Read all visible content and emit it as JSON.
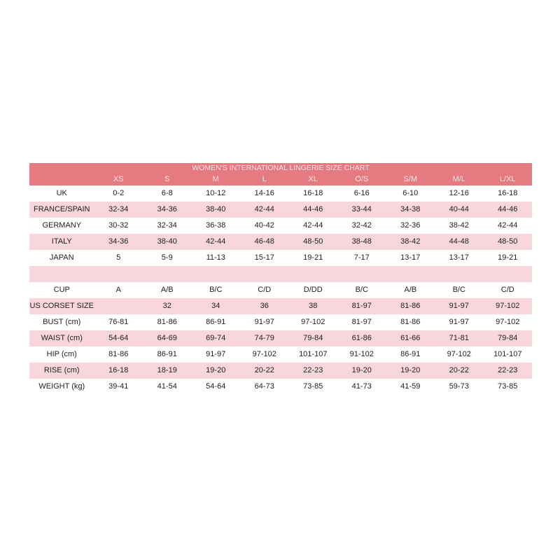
{
  "title": "WOMEN'S INTERNATIONAL LINGERIE SIZE CHART",
  "colors": {
    "header": "#e57b80",
    "stripe": "#f8d6dc"
  },
  "sizes": [
    "XS",
    "S",
    "M",
    "L",
    "XL",
    "O/S",
    "S/M",
    "M/L",
    "L/XL"
  ],
  "rows": [
    {
      "label": "UK",
      "values": [
        "0-2",
        "6-8",
        "10-12",
        "14-16",
        "16-18",
        "6-16",
        "6-10",
        "12-16",
        "16-18"
      ]
    },
    {
      "label": "FRANCE/SPAIN",
      "values": [
        "32-34",
        "34-36",
        "38-40",
        "42-44",
        "44-46",
        "33-44",
        "34-38",
        "40-44",
        "44-46"
      ]
    },
    {
      "label": "GERMANY",
      "values": [
        "30-32",
        "32-34",
        "36-38",
        "40-42",
        "42-44",
        "32-42",
        "32-36",
        "38-42",
        "42-44"
      ]
    },
    {
      "label": "ITALY",
      "values": [
        "34-36",
        "38-40",
        "42-44",
        "46-48",
        "48-50",
        "38-48",
        "38-42",
        "44-48",
        "48-50"
      ]
    },
    {
      "label": "JAPAN",
      "values": [
        "5",
        "5-9",
        "11-13",
        "15-17",
        "19-21",
        "7-17",
        "13-17",
        "13-17",
        "19-21"
      ]
    },
    {
      "label": "",
      "values": [
        "",
        "",
        "",
        "",
        "",
        "",
        "",
        "",
        ""
      ]
    },
    {
      "label": "CUP",
      "values": [
        "A",
        "A/B",
        "B/C",
        "C/D",
        "D/DD",
        "B/C",
        "A/B",
        "B/C",
        "C/D"
      ]
    },
    {
      "label": "US CORSET SIZE",
      "values": [
        "",
        "32",
        "34",
        "36",
        "38",
        "81-97",
        "81-86",
        "91-97",
        "97-102"
      ]
    },
    {
      "label": "BUST (cm)",
      "values": [
        "76-81",
        "81-86",
        "86-91",
        "91-97",
        "97-102",
        "81-97",
        "81-86",
        "91-97",
        "97-102"
      ]
    },
    {
      "label": "WAIST (cm)",
      "values": [
        "54-64",
        "64-69",
        "69-74",
        "74-79",
        "79-84",
        "61-86",
        "61-66",
        "71-81",
        "79-84"
      ]
    },
    {
      "label": "HIP (cm)",
      "values": [
        "81-86",
        "86-91",
        "91-97",
        "97-102",
        "101-107",
        "91-102",
        "86-91",
        "97-102",
        "101-107"
      ]
    },
    {
      "label": "RISE (cm)",
      "values": [
        "16-18",
        "18-19",
        "19-20",
        "20-22",
        "22-23",
        "19-20",
        "19-20",
        "20-22",
        "22-23"
      ]
    },
    {
      "label": "WEIGHT (kg)",
      "values": [
        "39-41",
        "41-54",
        "54-64",
        "64-73",
        "73-85",
        "41-73",
        "41-59",
        "59-73",
        "73-85"
      ]
    }
  ]
}
